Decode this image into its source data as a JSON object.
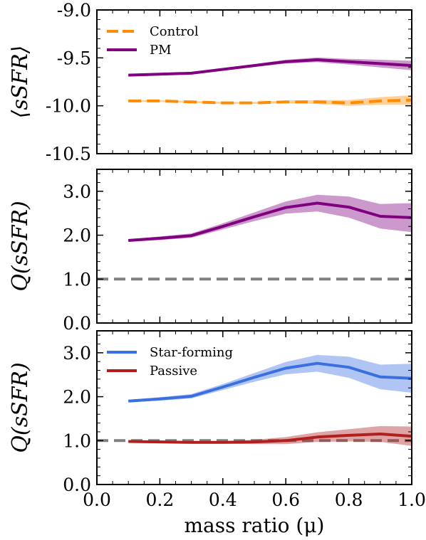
{
  "colors": {
    "control": "#ff8c00",
    "pm": "#800080",
    "star_forming": "#3a6fe0",
    "passive": "#b01e1e",
    "reference": "#808080"
  },
  "chart_data": [
    {
      "type": "line",
      "ylabel": "⟨sSFR⟩",
      "xlim": [
        0.0,
        1.0
      ],
      "ylim": [
        -10.5,
        -9.0
      ],
      "yticks": [
        "-10.5",
        "-10.0",
        "-9.5",
        "-9.0"
      ],
      "ytick_values": [
        -10.5,
        -10.0,
        -9.5,
        -9.0
      ],
      "xticks": [
        0.0,
        0.2,
        0.4,
        0.6,
        0.8,
        1.0
      ],
      "legend": "top-left",
      "x": [
        0.1,
        0.2,
        0.3,
        0.4,
        0.5,
        0.6,
        0.7,
        0.8,
        0.9,
        1.0
      ],
      "series": [
        {
          "name": "Control",
          "style": "dashed",
          "color": "control",
          "values": [
            -9.95,
            -9.95,
            -9.96,
            -9.97,
            -9.97,
            -9.96,
            -9.96,
            -9.97,
            -9.95,
            -9.94
          ],
          "band": [
            0.01,
            0.01,
            0.01,
            0.01,
            0.01,
            0.015,
            0.02,
            0.03,
            0.04,
            0.05
          ]
        },
        {
          "name": "PM",
          "style": "solid",
          "color": "pm",
          "values": [
            -9.68,
            -9.67,
            -9.66,
            -9.62,
            -9.58,
            -9.54,
            -9.52,
            -9.54,
            -9.56,
            -9.58
          ],
          "band": [
            0.01,
            0.01,
            0.01,
            0.01,
            0.015,
            0.02,
            0.025,
            0.03,
            0.04,
            0.05
          ]
        }
      ]
    },
    {
      "type": "line",
      "ylabel": "Q(sSFR)",
      "xlim": [
        0.0,
        1.0
      ],
      "ylim": [
        0.0,
        3.5
      ],
      "yticks": [
        "0.0",
        "1.0",
        "2.0",
        "3.0"
      ],
      "ytick_values": [
        0.0,
        1.0,
        2.0,
        3.0
      ],
      "xticks": [
        0.0,
        0.2,
        0.4,
        0.6,
        0.8,
        1.0
      ],
      "reference_line": 1.0,
      "x": [
        0.1,
        0.2,
        0.3,
        0.4,
        0.5,
        0.6,
        0.7,
        0.8,
        0.9,
        1.0
      ],
      "series": [
        {
          "color": "pm",
          "style": "solid",
          "values": [
            1.88,
            1.93,
            1.99,
            2.2,
            2.42,
            2.63,
            2.73,
            2.64,
            2.43,
            2.4
          ],
          "band": [
            0.03,
            0.04,
            0.05,
            0.07,
            0.1,
            0.14,
            0.19,
            0.24,
            0.28,
            0.33
          ]
        }
      ]
    },
    {
      "type": "line",
      "ylabel": "Q(sSFR)",
      "xlabel": "mass ratio (μ)",
      "xlim": [
        0.0,
        1.0
      ],
      "ylim": [
        0.0,
        3.5
      ],
      "yticks": [
        "0.0",
        "1.0",
        "2.0",
        "3.0"
      ],
      "ytick_values": [
        0.0,
        1.0,
        2.0,
        3.0
      ],
      "xticks": [
        "0.0",
        "0.2",
        "0.4",
        "0.6",
        "0.8",
        "1.0"
      ],
      "xtick_values": [
        0.0,
        0.2,
        0.4,
        0.6,
        0.8,
        1.0
      ],
      "reference_line": 1.0,
      "legend": "top-left",
      "x": [
        0.1,
        0.2,
        0.3,
        0.4,
        0.5,
        0.6,
        0.7,
        0.8,
        0.9,
        1.0
      ],
      "series": [
        {
          "name": "Star-forming",
          "style": "solid",
          "color": "star_forming",
          "values": [
            1.9,
            1.95,
            2.01,
            2.22,
            2.44,
            2.65,
            2.76,
            2.67,
            2.45,
            2.42
          ],
          "band": [
            0.03,
            0.04,
            0.05,
            0.07,
            0.1,
            0.14,
            0.19,
            0.24,
            0.28,
            0.33
          ]
        },
        {
          "name": "Passive",
          "style": "solid",
          "color": "passive",
          "values": [
            0.98,
            0.97,
            0.96,
            0.96,
            0.97,
            1.0,
            1.08,
            1.12,
            1.15,
            1.1
          ],
          "band": [
            0.03,
            0.03,
            0.03,
            0.03,
            0.05,
            0.08,
            0.11,
            0.14,
            0.18,
            0.22
          ]
        }
      ]
    }
  ]
}
